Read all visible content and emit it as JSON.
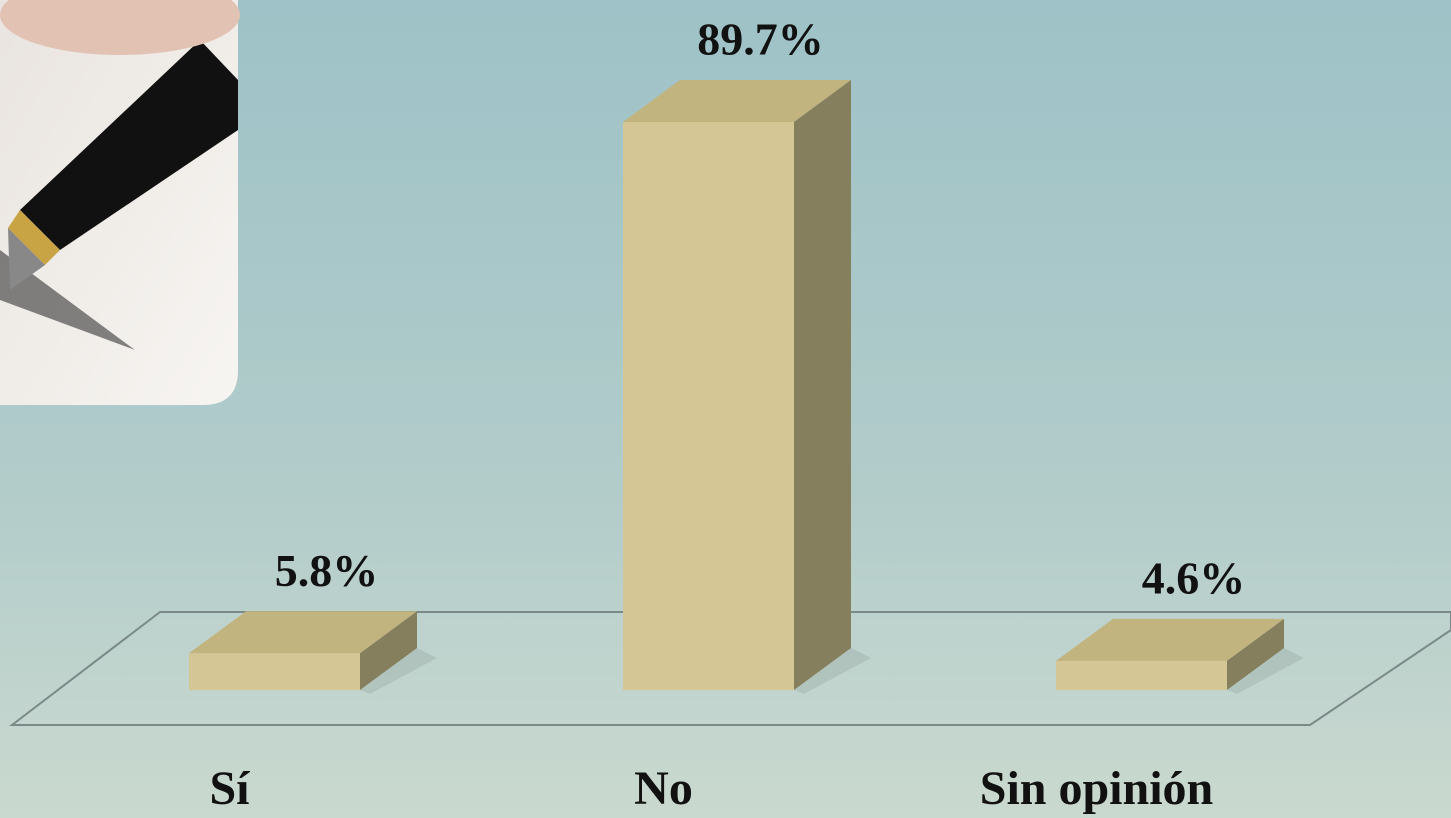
{
  "chart_data": {
    "type": "bar3d",
    "categories": [
      "Sí",
      "No",
      "Sin opinión"
    ],
    "values": [
      5.8,
      89.7,
      4.6
    ],
    "value_labels": [
      "5.8%",
      "89.7%",
      "4.6%"
    ],
    "color": "#d4c795"
  }
}
